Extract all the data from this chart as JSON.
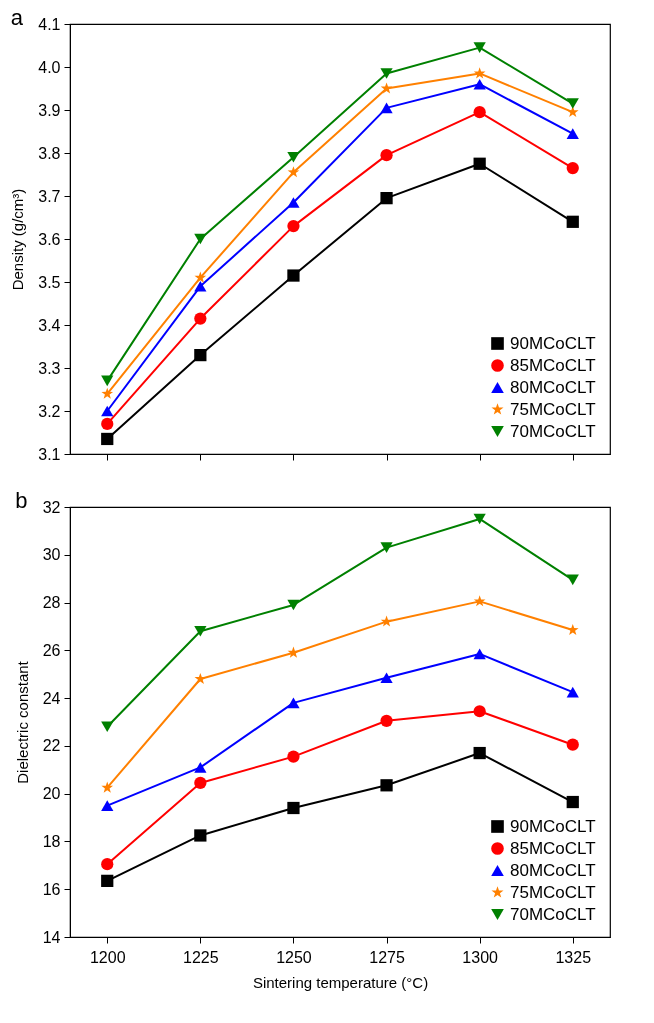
{
  "chart_data": [
    {
      "type": "line",
      "title": "a",
      "ylabel": "Density (g/cm³)",
      "x": [
        1200,
        1225,
        1250,
        1275,
        1300,
        1325
      ],
      "xlim": [
        1190,
        1335
      ],
      "xticks": [
        1200,
        1225,
        1250,
        1275,
        1300,
        1325
      ],
      "ylim": [
        3.1,
        4.1
      ],
      "yticks": [
        3.1,
        3.2,
        3.3,
        3.4,
        3.5,
        3.6,
        3.7,
        3.8,
        3.9,
        {
          "value": 4,
          "label": "4.0"
        },
        4.1
      ],
      "grid": false,
      "legend": "bottom right",
      "tick_labels": "y",
      "line_style": "solid",
      "series": [
        {
          "name": "90MCoCLT",
          "color": "#000000",
          "marker": "square",
          "values": [
            3.135,
            3.33,
            3.515,
            3.695,
            3.775,
            3.64
          ]
        },
        {
          "name": "85MCoCLT",
          "color": "#ff0000",
          "marker": "circle",
          "values": [
            3.17,
            3.415,
            3.63,
            3.795,
            3.895,
            3.765
          ]
        },
        {
          "name": "80MCoCLT",
          "color": "#0000ff",
          "marker": "triangle",
          "values": [
            3.2,
            3.49,
            3.685,
            3.905,
            3.96,
            3.845
          ]
        },
        {
          "name": "75MCoCLT",
          "color": "#ff8000",
          "marker": "star",
          "values": [
            3.24,
            3.51,
            3.755,
            3.95,
            3.985,
            3.895
          ]
        },
        {
          "name": "70MCoCLT",
          "color": "#008000",
          "marker": "triangle-down",
          "values": [
            3.27,
            3.6,
            3.79,
            3.985,
            4.045,
            3.915
          ]
        }
      ]
    },
    {
      "type": "line",
      "title": "b",
      "xlabel": "Sintering temperature (°C)",
      "ylabel": "Dielectric constant",
      "x": [
        1200,
        1225,
        1250,
        1275,
        1300,
        1325
      ],
      "xlim": [
        1190,
        1335
      ],
      "xticks": [
        1200,
        1225,
        1250,
        1275,
        1300,
        1325
      ],
      "ylim": [
        14,
        32
      ],
      "yticks": [
        14,
        16,
        18,
        20,
        22,
        24,
        26,
        28,
        30,
        32
      ],
      "grid": false,
      "legend": "bottom right",
      "line_style": "solid",
      "series": [
        {
          "name": "90MCoCLT",
          "color": "#000000",
          "marker": "square",
          "values": [
            16.35,
            18.25,
            19.4,
            20.35,
            21.7,
            19.65
          ]
        },
        {
          "name": "85MCoCLT",
          "color": "#ff0000",
          "marker": "circle",
          "values": [
            17.05,
            20.45,
            21.55,
            23.05,
            23.45,
            22.05
          ]
        },
        {
          "name": "80MCoCLT",
          "color": "#0000ff",
          "marker": "triangle",
          "values": [
            19.5,
            21.1,
            23.8,
            24.85,
            25.85,
            24.25
          ]
        },
        {
          "name": "75MCoCLT",
          "color": "#ff8000",
          "marker": "star",
          "values": [
            20.25,
            24.8,
            25.9,
            27.2,
            28.05,
            26.85
          ]
        },
        {
          "name": "70MCoCLT",
          "color": "#008000",
          "marker": "triangle-down",
          "values": [
            22.8,
            26.8,
            27.9,
            30.3,
            31.5,
            28.95
          ]
        }
      ]
    }
  ]
}
